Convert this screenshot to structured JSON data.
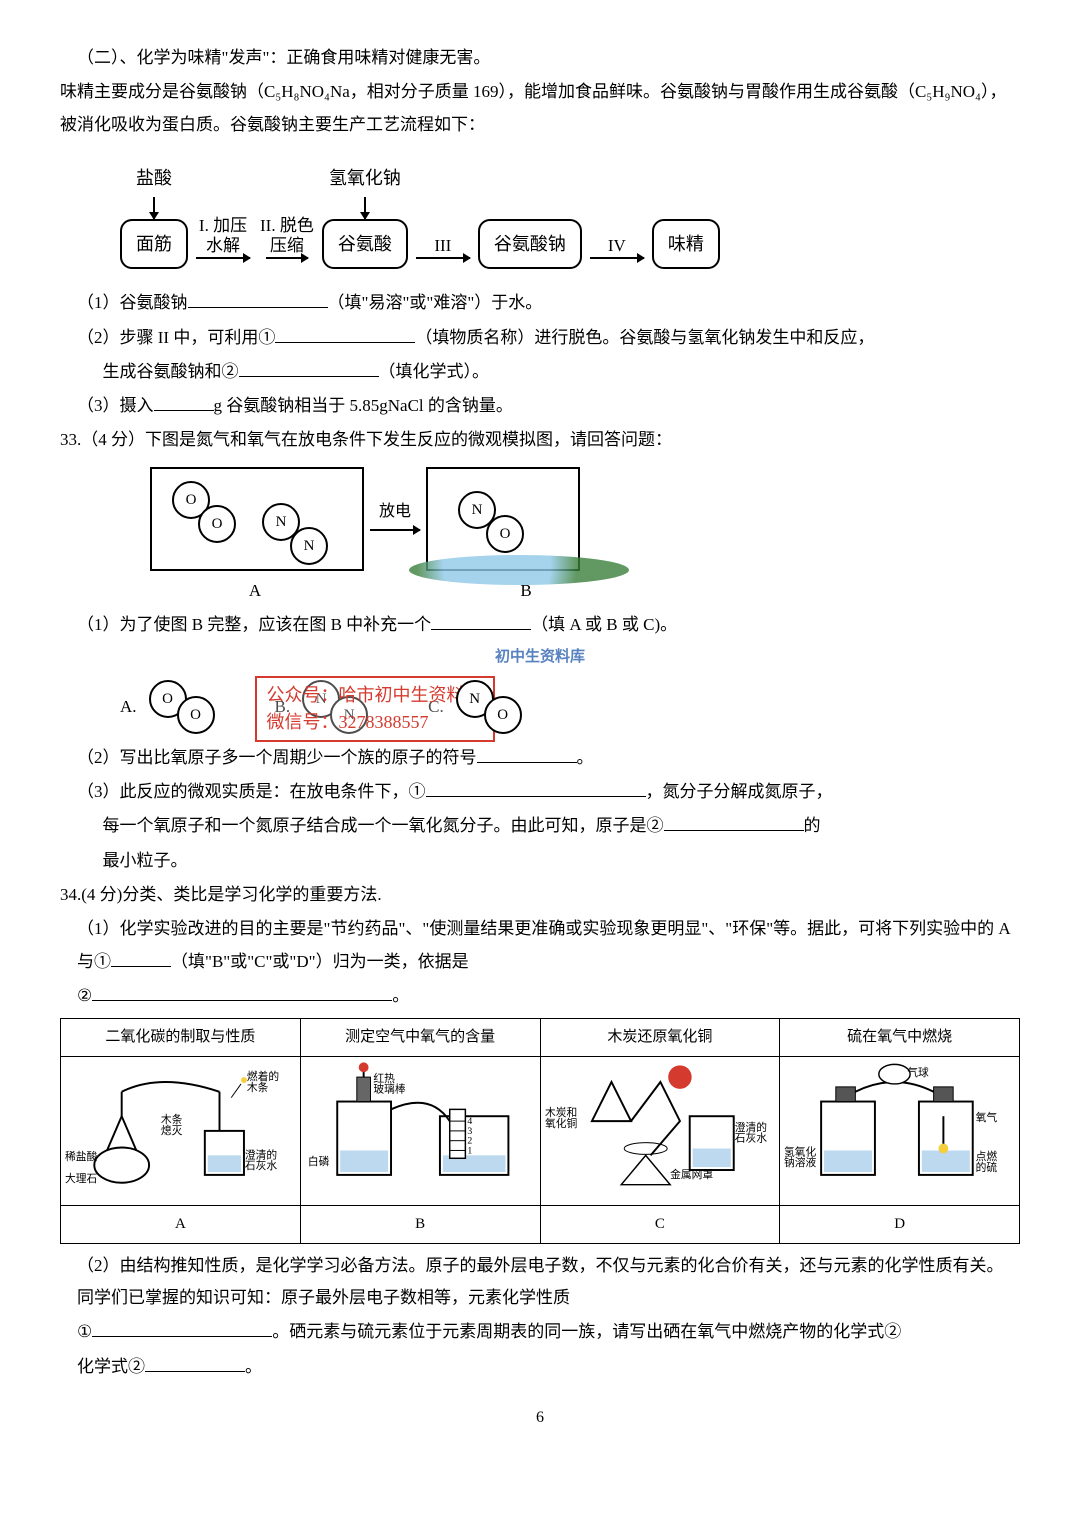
{
  "intro": {
    "heading": "（二）、化学为味精\"发声\"：正确食用味精对健康无害。",
    "p1": "味精主要成分是谷氨酸钠（C₅H₈NO₄Na，相对分子质量 169），能增加食品鲜味。谷氨酸钠与胃酸作用生成谷氨酸（C₅H₉NO₄），被消化吸收为蛋白质。谷氨酸钠主要生产工艺流程如下："
  },
  "flow1": {
    "in_top": "盐酸",
    "start": "面筋",
    "step1_top": "I. 加压",
    "step1_bot": "水解",
    "step2_top": "II. 脱色",
    "step2_bot": "压缩",
    "mid1": "谷氨酸",
    "step3": "III",
    "mid2": "谷氨酸钠",
    "step4": "IV",
    "end": "味精",
    "naoh": "氢氧化钠"
  },
  "q_flow": {
    "q1a": "（1）谷氨酸钠",
    "q1b": "（填\"易溶\"或\"难溶\"）于水。",
    "q2a": "（2）步骤 II 中，可利用①",
    "q2b": "（填物质名称）进行脱色。谷氨酸与氢氧化钠发生中和反应，",
    "q2c": "生成谷氨酸钠和②",
    "q2d": "（填化学式）。",
    "q3a": "（3）摄入",
    "q3b": "g 谷氨酸钠相当于 5.85gNaCl 的含钠量。"
  },
  "q33": {
    "stem": "33.（4 分）下图是氮气和氧气在放电条件下发生反应的微观模拟图，请回答问题：",
    "discharge": "放电",
    "labelA": "A",
    "labelB": "B",
    "q1a": "（1）为了使图 B 完整，应该在图 B 中补充一个",
    "q1b": "（填 A 或 B 或 C)。",
    "optA": "A.",
    "optB": "B.",
    "optC": "C.",
    "q2a": "（2）写出比氧原子多一个周期少一个族的原子的符号",
    "q2b": "。",
    "q3a": "（3）此反应的微观实质是：在放电条件下，①",
    "q3b": "，氮分子分解成氮原子，",
    "q3c": "每一个氧原子和一个氮原子结合成一个一氧化氮分子。由此可知，原子是②",
    "q3d": "的",
    "q3e": "最小粒子。"
  },
  "molecules": {
    "A1": "O",
    "A2": "O",
    "B1": "N",
    "B2": "N",
    "C1": "N",
    "C2": "O",
    "boxA_O1": "O",
    "boxA_O2": "O",
    "boxA_N1": "N",
    "boxA_N2": "N",
    "boxB_N": "N",
    "boxB_O": "O"
  },
  "watermark": {
    "line0": "初中生资料库",
    "line1": "公众号：哈市初中生资料库",
    "line2": "微信号：3278388557"
  },
  "q34": {
    "stem": "34.(4 分)分类、类比是学习化学的重要方法.",
    "q1a": "（1）化学实验改进的目的主要是\"节约药品\"、\"使测量结果更准确或实验现象更明显\"、\"环保\"等。据此，可将下列实验中的 A 与①",
    "q1b": "（填\"B\"或\"C\"或\"D\"）归为一类，依据是",
    "q1c": "②",
    "q1d": "。",
    "th1": "二氧化碳的制取与性质",
    "th2": "测定空气中氧气的含量",
    "th3": "木炭还原氧化铜",
    "th4": "硫在氧气中燃烧",
    "rowA": "A",
    "rowB": "B",
    "rowC": "C",
    "rowD": "D",
    "q2a": "（2）由结构推知性质，是化学学习必备方法。原子的最外层电子数，不仅与元素的化合价有关，还与元素的化学性质有关。同学们已掌握的知识可知：原子最外层电子数相等，元素化学性质",
    "q2b": "①",
    "q2c": "。硒元素与硫元素位于元素周期表的同一族，请写出硒在氧气中燃烧产物的化学式②",
    "q2d": "。"
  },
  "exp_labels": {
    "A_match": "燃着的\n木条",
    "A_off": "木条\n熄灭",
    "A_hcl": "稀盐酸",
    "A_marble": "大理石",
    "A_lime": "澄清的\n石灰水",
    "B_rod": "红热\n玻璃棒",
    "B_p": "白磷",
    "B_scale4": "4",
    "B_scale3": "3",
    "B_scale2": "2",
    "B_scale1": "1",
    "C_mix": "木炭和\n氧化铜",
    "C_lime": "澄清的\n石灰水",
    "C_net": "金属网罩",
    "D_balloon": "气球",
    "D_o2": "氧气",
    "D_naoh": "氢氧化\n钠溶液",
    "D_s": "点燃\n的硫"
  },
  "pagenum": "6"
}
